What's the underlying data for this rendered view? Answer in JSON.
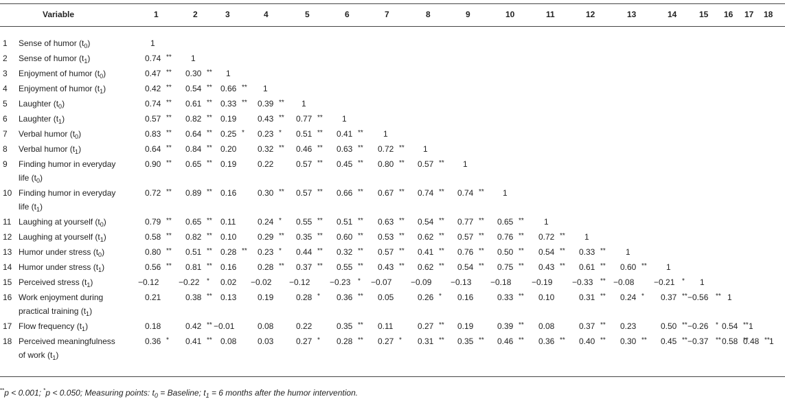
{
  "header": {
    "variable": "Variable",
    "cols": [
      "1",
      "2",
      "3",
      "4",
      "5",
      "6",
      "7",
      "8",
      "9",
      "10",
      "11",
      "12",
      "13",
      "14",
      "15",
      "16",
      "17",
      "18"
    ]
  },
  "rows": [
    {
      "num": "1",
      "label": [
        [
          "Sense of humor (t",
          "0",
          ")"
        ]
      ],
      "vals": [
        [
          "1",
          ""
        ]
      ]
    },
    {
      "num": "2",
      "label": [
        [
          "Sense of humor (t",
          "1",
          ")"
        ]
      ],
      "vals": [
        [
          "0.74",
          "**"
        ],
        [
          "1",
          ""
        ]
      ]
    },
    {
      "num": "3",
      "label": [
        [
          "Enjoyment of humor (t",
          "0",
          ")"
        ]
      ],
      "vals": [
        [
          "0.47",
          "**"
        ],
        [
          "0.30",
          "**"
        ],
        [
          "1",
          ""
        ]
      ]
    },
    {
      "num": "4",
      "label": [
        [
          "Enjoyment of humor (t",
          "1",
          ")"
        ]
      ],
      "vals": [
        [
          "0.42",
          "**"
        ],
        [
          "0.54",
          "**"
        ],
        [
          "0.66",
          "**"
        ],
        [
          "1",
          ""
        ]
      ]
    },
    {
      "num": "5",
      "label": [
        [
          "Laughter (t",
          "0",
          ")"
        ]
      ],
      "vals": [
        [
          "0.74",
          "**"
        ],
        [
          "0.61",
          "**"
        ],
        [
          "0.33",
          "**"
        ],
        [
          "0.39",
          "**"
        ],
        [
          "1",
          ""
        ]
      ]
    },
    {
      "num": "6",
      "label": [
        [
          "Laughter (t",
          "1",
          ")"
        ]
      ],
      "vals": [
        [
          "0.57",
          "**"
        ],
        [
          "0.82",
          "**"
        ],
        [
          "0.19",
          ""
        ],
        [
          "0.43",
          "**"
        ],
        [
          "0.77",
          "**"
        ],
        [
          "1",
          ""
        ]
      ]
    },
    {
      "num": "7",
      "label": [
        [
          "Verbal humor (t",
          "0",
          ")"
        ]
      ],
      "vals": [
        [
          "0.83",
          "**"
        ],
        [
          "0.64",
          "**"
        ],
        [
          "0.25",
          "*"
        ],
        [
          "0.23",
          "*"
        ],
        [
          "0.51",
          "**"
        ],
        [
          "0.41",
          "**"
        ],
        [
          "1",
          ""
        ]
      ]
    },
    {
      "num": "8",
      "label": [
        [
          "Verbal humor (t",
          "1",
          ")"
        ]
      ],
      "vals": [
        [
          "0.64",
          "**"
        ],
        [
          "0.84",
          "**"
        ],
        [
          "0.20",
          ""
        ],
        [
          "0.32",
          "**"
        ],
        [
          "0.46",
          "**"
        ],
        [
          "0.63",
          "**"
        ],
        [
          "0.72",
          "**"
        ],
        [
          "1",
          ""
        ]
      ]
    },
    {
      "num": "9",
      "label": [
        [
          "Finding humor in everyday",
          null,
          null
        ],
        [
          "life (t",
          "0",
          ")"
        ]
      ],
      "vals": [
        [
          "0.90",
          "**"
        ],
        [
          "0.65",
          "**"
        ],
        [
          "0.19",
          ""
        ],
        [
          "0.22",
          ""
        ],
        [
          "0.57",
          "**"
        ],
        [
          "0.45",
          "**"
        ],
        [
          "0.80",
          "**"
        ],
        [
          "0.57",
          "**"
        ],
        [
          "1",
          ""
        ]
      ]
    },
    {
      "num": "10",
      "label": [
        [
          "Finding humor in everyday",
          null,
          null
        ],
        [
          "life (t",
          "1",
          ")"
        ]
      ],
      "vals": [
        [
          "0.72",
          "**"
        ],
        [
          "0.89",
          "**"
        ],
        [
          "0.16",
          ""
        ],
        [
          "0.30",
          "**"
        ],
        [
          "0.57",
          "**"
        ],
        [
          "0.66",
          "**"
        ],
        [
          "0.67",
          "**"
        ],
        [
          "0.74",
          "**"
        ],
        [
          "0.74",
          "**"
        ],
        [
          "1",
          ""
        ]
      ]
    },
    {
      "num": "11",
      "label": [
        [
          "Laughing at yourself (t",
          "0",
          ")"
        ]
      ],
      "vals": [
        [
          "0.79",
          "**"
        ],
        [
          "0.65",
          "**"
        ],
        [
          "0.11",
          ""
        ],
        [
          "0.24",
          "*"
        ],
        [
          "0.55",
          "**"
        ],
        [
          "0.51",
          "**"
        ],
        [
          "0.63",
          "**"
        ],
        [
          "0.54",
          "**"
        ],
        [
          "0.77",
          "**"
        ],
        [
          "0.65",
          "**"
        ],
        [
          "1",
          ""
        ]
      ]
    },
    {
      "num": "12",
      "label": [
        [
          "Laughing at yourself (t",
          "1",
          ")"
        ]
      ],
      "vals": [
        [
          "0.58",
          "**"
        ],
        [
          "0.82",
          "**"
        ],
        [
          "0.10",
          ""
        ],
        [
          "0.29",
          "**"
        ],
        [
          "0.35",
          "**"
        ],
        [
          "0.60",
          "**"
        ],
        [
          "0.53",
          "**"
        ],
        [
          "0.62",
          "**"
        ],
        [
          "0.57",
          "**"
        ],
        [
          "0.76",
          "**"
        ],
        [
          "0.72",
          "**"
        ],
        [
          "1",
          ""
        ]
      ]
    },
    {
      "num": "13",
      "label": [
        [
          "Humor under stress (t",
          "0",
          ")"
        ]
      ],
      "vals": [
        [
          "0.80",
          "**"
        ],
        [
          "0.51",
          "**"
        ],
        [
          "0.28",
          "**"
        ],
        [
          "0.23",
          "*"
        ],
        [
          "0.44",
          "**"
        ],
        [
          "0.32",
          "**"
        ],
        [
          "0.57",
          "**"
        ],
        [
          "0.41",
          "**"
        ],
        [
          "0.76",
          "**"
        ],
        [
          "0.50",
          "**"
        ],
        [
          "0.54",
          "**"
        ],
        [
          "0.33",
          "**"
        ],
        [
          "1",
          ""
        ]
      ]
    },
    {
      "num": "14",
      "label": [
        [
          "Humor under stress (t",
          "1",
          ")"
        ]
      ],
      "vals": [
        [
          "0.56",
          "**"
        ],
        [
          "0.81",
          "**"
        ],
        [
          "0.16",
          ""
        ],
        [
          "0.28",
          "**"
        ],
        [
          "0.37",
          "**"
        ],
        [
          "0.55",
          "**"
        ],
        [
          "0.43",
          "**"
        ],
        [
          "0.62",
          "**"
        ],
        [
          "0.54",
          "**"
        ],
        [
          "0.75",
          "**"
        ],
        [
          "0.43",
          "**"
        ],
        [
          "0.61",
          "**"
        ],
        [
          "0.60",
          "**"
        ],
        [
          "1",
          ""
        ]
      ]
    },
    {
      "num": "15",
      "label": [
        [
          "Perceived stress (t",
          "1",
          ")"
        ]
      ],
      "vals": [
        [
          "−0.12",
          ""
        ],
        [
          "−0.22",
          "*"
        ],
        [
          "0.02",
          ""
        ],
        [
          "−0.02",
          ""
        ],
        [
          "−0.12",
          ""
        ],
        [
          "−0.23",
          "*"
        ],
        [
          "−0.07",
          ""
        ],
        [
          "−0.09",
          ""
        ],
        [
          "−0.13",
          ""
        ],
        [
          "−0.18",
          ""
        ],
        [
          "−0.19",
          ""
        ],
        [
          "−0.33",
          "**"
        ],
        [
          "−0.08",
          ""
        ],
        [
          "−0.21",
          "*"
        ],
        [
          "1",
          ""
        ]
      ]
    },
    {
      "num": "16",
      "label": [
        [
          "Work enjoyment during",
          null,
          null
        ],
        [
          "practical training (t",
          "1",
          ")"
        ]
      ],
      "vals": [
        [
          "0.21",
          ""
        ],
        [
          "0.38",
          "**"
        ],
        [
          "0.13",
          ""
        ],
        [
          "0.19",
          ""
        ],
        [
          "0.28",
          "*"
        ],
        [
          "0.36",
          "**"
        ],
        [
          "0.05",
          ""
        ],
        [
          "0.26",
          "*"
        ],
        [
          "0.16",
          ""
        ],
        [
          "0.33",
          "**"
        ],
        [
          "0.10",
          ""
        ],
        [
          "0.31",
          "**"
        ],
        [
          "0.24",
          "*"
        ],
        [
          "0.37",
          "**"
        ],
        [
          "−0.56",
          "**"
        ],
        [
          "1",
          ""
        ]
      ]
    },
    {
      "num": "17",
      "label": [
        [
          "Flow frequency (t",
          "1",
          ")"
        ]
      ],
      "vals": [
        [
          "0.18",
          ""
        ],
        [
          "0.42",
          "**"
        ],
        [
          "−0.01",
          ""
        ],
        [
          "0.08",
          ""
        ],
        [
          "0.22",
          ""
        ],
        [
          "0.35",
          "**"
        ],
        [
          "0.11",
          ""
        ],
        [
          "0.27",
          "**"
        ],
        [
          "0.19",
          ""
        ],
        [
          "0.39",
          "**"
        ],
        [
          "0.08",
          ""
        ],
        [
          "0.37",
          "**"
        ],
        [
          "0.23",
          ""
        ],
        [
          "0.50",
          "**"
        ],
        [
          "−0.26",
          "*"
        ],
        [
          "0.54",
          "**"
        ],
        [
          "1",
          ""
        ]
      ]
    },
    {
      "num": "18",
      "label": [
        [
          "Perceived meaningfulness",
          null,
          null
        ],
        [
          "of work (t",
          "1",
          ")"
        ]
      ],
      "vals": [
        [
          "0.36",
          "*"
        ],
        [
          "0.41",
          "**"
        ],
        [
          "0.08",
          ""
        ],
        [
          "0.03",
          ""
        ],
        [
          "0.27",
          "*"
        ],
        [
          "0.28",
          "**"
        ],
        [
          "0.27",
          "*"
        ],
        [
          "0.31",
          "**"
        ],
        [
          "0.35",
          "**"
        ],
        [
          "0.46",
          "**"
        ],
        [
          "0.36",
          "**"
        ],
        [
          "0.40",
          "**"
        ],
        [
          "0.30",
          "**"
        ],
        [
          "0.45",
          "**"
        ],
        [
          "−0.37",
          "**"
        ],
        [
          "0.58",
          "**"
        ],
        [
          "0.48",
          "**"
        ],
        [
          "1",
          ""
        ]
      ]
    }
  ],
  "footnote": "**p < 0.001; *p < 0.050; Measuring points: t0 = Baseline; t1 = 6 months after the humor intervention."
}
